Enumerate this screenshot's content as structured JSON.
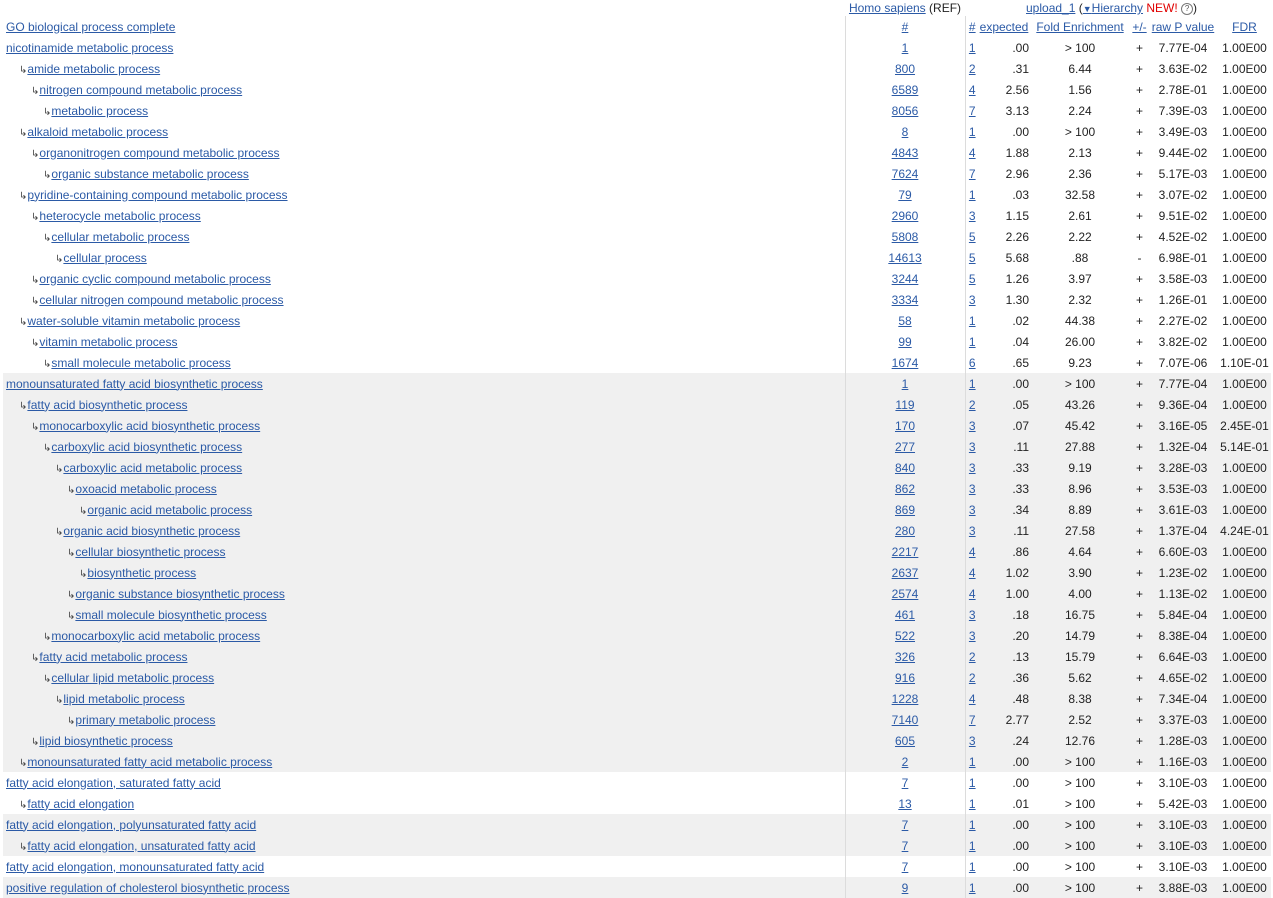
{
  "header": {
    "ref_species": "Homo sapiens",
    "ref_suffix": "(REF)",
    "upload_label": "upload_1",
    "paren_open": "(",
    "hierarchy_arrow": "▼",
    "hierarchy_label": "Hierarchy",
    "new_label": "NEW!",
    "help_icon_glyph": "?",
    "paren_close": ")"
  },
  "columns": {
    "term": "GO biological process complete",
    "ref_count": "#",
    "upload_count": "#",
    "expected": "expected",
    "fold": "Fold Enrichment",
    "sign": "+/-",
    "pvalue": "raw P value",
    "fdr": "FDR"
  },
  "rows": [
    {
      "level": 0,
      "group": 0,
      "term": "nicotinamide metabolic process",
      "ref": "1",
      "n": "1",
      "expected": ".00",
      "fold": "> 100",
      "sign": "+",
      "p": "7.77E-04",
      "fdr": "1.00E00"
    },
    {
      "level": 1,
      "group": 0,
      "term": "amide metabolic process",
      "ref": "800",
      "n": "2",
      "expected": ".31",
      "fold": "6.44",
      "sign": "+",
      "p": "3.63E-02",
      "fdr": "1.00E00"
    },
    {
      "level": 2,
      "group": 0,
      "term": "nitrogen compound metabolic process",
      "ref": "6589",
      "n": "4",
      "expected": "2.56",
      "fold": "1.56",
      "sign": "+",
      "p": "2.78E-01",
      "fdr": "1.00E00"
    },
    {
      "level": 3,
      "group": 0,
      "term": "metabolic process",
      "ref": "8056",
      "n": "7",
      "expected": "3.13",
      "fold": "2.24",
      "sign": "+",
      "p": "7.39E-03",
      "fdr": "1.00E00"
    },
    {
      "level": 1,
      "group": 0,
      "term": "alkaloid metabolic process",
      "ref": "8",
      "n": "1",
      "expected": ".00",
      "fold": "> 100",
      "sign": "+",
      "p": "3.49E-03",
      "fdr": "1.00E00"
    },
    {
      "level": 2,
      "group": 0,
      "term": "organonitrogen compound metabolic process",
      "ref": "4843",
      "n": "4",
      "expected": "1.88",
      "fold": "2.13",
      "sign": "+",
      "p": "9.44E-02",
      "fdr": "1.00E00"
    },
    {
      "level": 3,
      "group": 0,
      "term": "organic substance metabolic process",
      "ref": "7624",
      "n": "7",
      "expected": "2.96",
      "fold": "2.36",
      "sign": "+",
      "p": "5.17E-03",
      "fdr": "1.00E00"
    },
    {
      "level": 1,
      "group": 0,
      "term": "pyridine-containing compound metabolic process",
      "ref": "79",
      "n": "1",
      "expected": ".03",
      "fold": "32.58",
      "sign": "+",
      "p": "3.07E-02",
      "fdr": "1.00E00"
    },
    {
      "level": 2,
      "group": 0,
      "term": "heterocycle metabolic process",
      "ref": "2960",
      "n": "3",
      "expected": "1.15",
      "fold": "2.61",
      "sign": "+",
      "p": "9.51E-02",
      "fdr": "1.00E00"
    },
    {
      "level": 3,
      "group": 0,
      "term": "cellular metabolic process",
      "ref": "5808",
      "n": "5",
      "expected": "2.26",
      "fold": "2.22",
      "sign": "+",
      "p": "4.52E-02",
      "fdr": "1.00E00"
    },
    {
      "level": 4,
      "group": 0,
      "term": "cellular process",
      "ref": "14613",
      "n": "5",
      "expected": "5.68",
      "fold": ".88",
      "sign": "-",
      "p": "6.98E-01",
      "fdr": "1.00E00"
    },
    {
      "level": 2,
      "group": 0,
      "term": "organic cyclic compound metabolic process",
      "ref": "3244",
      "n": "5",
      "expected": "1.26",
      "fold": "3.97",
      "sign": "+",
      "p": "3.58E-03",
      "fdr": "1.00E00"
    },
    {
      "level": 2,
      "group": 0,
      "term": "cellular nitrogen compound metabolic process",
      "ref": "3334",
      "n": "3",
      "expected": "1.30",
      "fold": "2.32",
      "sign": "+",
      "p": "1.26E-01",
      "fdr": "1.00E00"
    },
    {
      "level": 1,
      "group": 0,
      "term": "water-soluble vitamin metabolic process",
      "ref": "58",
      "n": "1",
      "expected": ".02",
      "fold": "44.38",
      "sign": "+",
      "p": "2.27E-02",
      "fdr": "1.00E00"
    },
    {
      "level": 2,
      "group": 0,
      "term": "vitamin metabolic process",
      "ref": "99",
      "n": "1",
      "expected": ".04",
      "fold": "26.00",
      "sign": "+",
      "p": "3.82E-02",
      "fdr": "1.00E00"
    },
    {
      "level": 3,
      "group": 0,
      "term": "small molecule metabolic process",
      "ref": "1674",
      "n": "6",
      "expected": ".65",
      "fold": "9.23",
      "sign": "+",
      "p": "7.07E-06",
      "fdr": "1.10E-01"
    },
    {
      "level": 0,
      "group": 1,
      "term": "monounsaturated fatty acid biosynthetic process",
      "ref": "1",
      "n": "1",
      "expected": ".00",
      "fold": "> 100",
      "sign": "+",
      "p": "7.77E-04",
      "fdr": "1.00E00"
    },
    {
      "level": 1,
      "group": 1,
      "term": "fatty acid biosynthetic process",
      "ref": "119",
      "n": "2",
      "expected": ".05",
      "fold": "43.26",
      "sign": "+",
      "p": "9.36E-04",
      "fdr": "1.00E00"
    },
    {
      "level": 2,
      "group": 1,
      "term": "monocarboxylic acid biosynthetic process",
      "ref": "170",
      "n": "3",
      "expected": ".07",
      "fold": "45.42",
      "sign": "+",
      "p": "3.16E-05",
      "fdr": "2.45E-01"
    },
    {
      "level": 3,
      "group": 1,
      "term": "carboxylic acid biosynthetic process",
      "ref": "277",
      "n": "3",
      "expected": ".11",
      "fold": "27.88",
      "sign": "+",
      "p": "1.32E-04",
      "fdr": "5.14E-01"
    },
    {
      "level": 4,
      "group": 1,
      "term": "carboxylic acid metabolic process",
      "ref": "840",
      "n": "3",
      "expected": ".33",
      "fold": "9.19",
      "sign": "+",
      "p": "3.28E-03",
      "fdr": "1.00E00"
    },
    {
      "level": 5,
      "group": 1,
      "term": "oxoacid metabolic process",
      "ref": "862",
      "n": "3",
      "expected": ".33",
      "fold": "8.96",
      "sign": "+",
      "p": "3.53E-03",
      "fdr": "1.00E00"
    },
    {
      "level": 6,
      "group": 1,
      "term": "organic acid metabolic process",
      "ref": "869",
      "n": "3",
      "expected": ".34",
      "fold": "8.89",
      "sign": "+",
      "p": "3.61E-03",
      "fdr": "1.00E00"
    },
    {
      "level": 4,
      "group": 1,
      "term": "organic acid biosynthetic process",
      "ref": "280",
      "n": "3",
      "expected": ".11",
      "fold": "27.58",
      "sign": "+",
      "p": "1.37E-04",
      "fdr": "4.24E-01"
    },
    {
      "level": 5,
      "group": 1,
      "term": "cellular biosynthetic process",
      "ref": "2217",
      "n": "4",
      "expected": ".86",
      "fold": "4.64",
      "sign": "+",
      "p": "6.60E-03",
      "fdr": "1.00E00"
    },
    {
      "level": 6,
      "group": 1,
      "term": "biosynthetic process",
      "ref": "2637",
      "n": "4",
      "expected": "1.02",
      "fold": "3.90",
      "sign": "+",
      "p": "1.23E-02",
      "fdr": "1.00E00"
    },
    {
      "level": 5,
      "group": 1,
      "term": "organic substance biosynthetic process",
      "ref": "2574",
      "n": "4",
      "expected": "1.00",
      "fold": "4.00",
      "sign": "+",
      "p": "1.13E-02",
      "fdr": "1.00E00"
    },
    {
      "level": 5,
      "group": 1,
      "term": "small molecule biosynthetic process",
      "ref": "461",
      "n": "3",
      "expected": ".18",
      "fold": "16.75",
      "sign": "+",
      "p": "5.84E-04",
      "fdr": "1.00E00"
    },
    {
      "level": 3,
      "group": 1,
      "term": "monocarboxylic acid metabolic process",
      "ref": "522",
      "n": "3",
      "expected": ".20",
      "fold": "14.79",
      "sign": "+",
      "p": "8.38E-04",
      "fdr": "1.00E00"
    },
    {
      "level": 2,
      "group": 1,
      "term": "fatty acid metabolic process",
      "ref": "326",
      "n": "2",
      "expected": ".13",
      "fold": "15.79",
      "sign": "+",
      "p": "6.64E-03",
      "fdr": "1.00E00"
    },
    {
      "level": 3,
      "group": 1,
      "term": "cellular lipid metabolic process",
      "ref": "916",
      "n": "2",
      "expected": ".36",
      "fold": "5.62",
      "sign": "+",
      "p": "4.65E-02",
      "fdr": "1.00E00"
    },
    {
      "level": 4,
      "group": 1,
      "term": "lipid metabolic process",
      "ref": "1228",
      "n": "4",
      "expected": ".48",
      "fold": "8.38",
      "sign": "+",
      "p": "7.34E-04",
      "fdr": "1.00E00"
    },
    {
      "level": 5,
      "group": 1,
      "term": "primary metabolic process",
      "ref": "7140",
      "n": "7",
      "expected": "2.77",
      "fold": "2.52",
      "sign": "+",
      "p": "3.37E-03",
      "fdr": "1.00E00"
    },
    {
      "level": 2,
      "group": 1,
      "term": "lipid biosynthetic process",
      "ref": "605",
      "n": "3",
      "expected": ".24",
      "fold": "12.76",
      "sign": "+",
      "p": "1.28E-03",
      "fdr": "1.00E00"
    },
    {
      "level": 1,
      "group": 1,
      "term": "monounsaturated fatty acid metabolic process",
      "ref": "2",
      "n": "1",
      "expected": ".00",
      "fold": "> 100",
      "sign": "+",
      "p": "1.16E-03",
      "fdr": "1.00E00"
    },
    {
      "level": 0,
      "group": 0,
      "term": "fatty acid elongation, saturated fatty acid",
      "ref": "7",
      "n": "1",
      "expected": ".00",
      "fold": "> 100",
      "sign": "+",
      "p": "3.10E-03",
      "fdr": "1.00E00"
    },
    {
      "level": 1,
      "group": 0,
      "term": "fatty acid elongation",
      "ref": "13",
      "n": "1",
      "expected": ".01",
      "fold": "> 100",
      "sign": "+",
      "p": "5.42E-03",
      "fdr": "1.00E00"
    },
    {
      "level": 0,
      "group": 1,
      "term": "fatty acid elongation, polyunsaturated fatty acid",
      "ref": "7",
      "n": "1",
      "expected": ".00",
      "fold": "> 100",
      "sign": "+",
      "p": "3.10E-03",
      "fdr": "1.00E00"
    },
    {
      "level": 1,
      "group": 1,
      "term": "fatty acid elongation, unsaturated fatty acid",
      "ref": "7",
      "n": "1",
      "expected": ".00",
      "fold": "> 100",
      "sign": "+",
      "p": "3.10E-03",
      "fdr": "1.00E00"
    },
    {
      "level": 0,
      "group": 0,
      "term": "fatty acid elongation, monounsaturated fatty acid",
      "ref": "7",
      "n": "1",
      "expected": ".00",
      "fold": "> 100",
      "sign": "+",
      "p": "3.10E-03",
      "fdr": "1.00E00"
    },
    {
      "level": 0,
      "group": 1,
      "term": "positive regulation of cholesterol biosynthetic process",
      "ref": "9",
      "n": "1",
      "expected": ".00",
      "fold": "> 100",
      "sign": "+",
      "p": "3.88E-03",
      "fdr": "1.00E00"
    }
  ],
  "colors": {
    "link": "#2b5aa6",
    "group_shade": "#f0f0f0",
    "new_badge": "#e00000"
  },
  "icons": {
    "child_marker": "subdirectory-arrow-icon",
    "hierarchy_toggle": "triangle-down-icon",
    "help": "help-circle-icon"
  }
}
